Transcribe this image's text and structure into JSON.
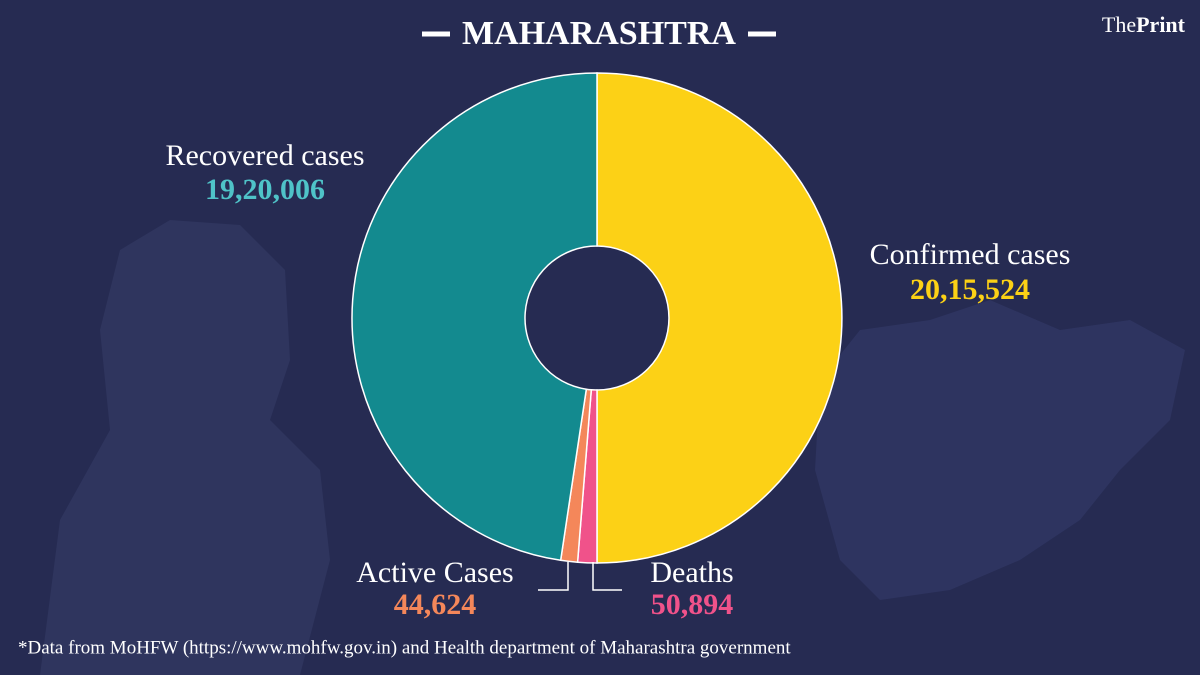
{
  "brand": {
    "prefix": "The",
    "name": "Print"
  },
  "chart_data": {
    "type": "donut",
    "title": "MAHARASHTRA",
    "categories": [
      "Confirmed cases",
      "Deaths",
      "Active Cases",
      "Recovered cases"
    ],
    "values": [
      2015524,
      50894,
      44624,
      1920006
    ],
    "value_labels": [
      "20,15,524",
      "50,894",
      "44,624",
      "19,20,006"
    ],
    "colors": [
      "#fcd116",
      "#f0528a",
      "#f4875a",
      "#138a8f"
    ],
    "label_colors": [
      "#fcd116",
      "#f0528a",
      "#f4875a",
      "#4fc3c8"
    ]
  },
  "footnote": "*Data from MoHFW (https://www.mohfw.gov.in)  and Health department of  Maharashtra government"
}
